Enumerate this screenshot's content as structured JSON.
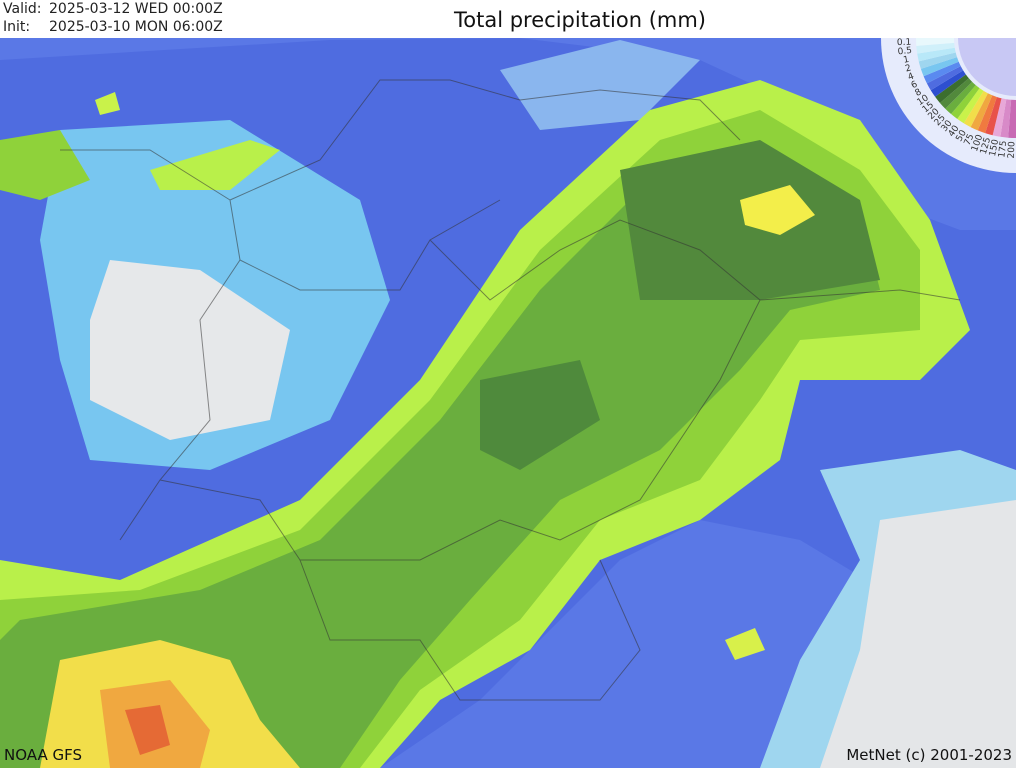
{
  "header": {
    "valid_label": "Valid:",
    "valid_time": "2025-03-12 WED 00:00Z",
    "init_label": "Init:",
    "init_time": "2025-03-10 MON 06:00Z",
    "title": "Total precipitation (mm)"
  },
  "legend": {
    "labels": [
      "200",
      "175",
      "150",
      "125",
      "100",
      "75",
      "50",
      "40",
      "30",
      "25",
      "20",
      "15",
      "10",
      "8",
      "6",
      "4",
      "2",
      "1",
      "0.5",
      "0.1"
    ]
  },
  "footer": {
    "source": "NOAA GFS",
    "copyright": "MetNet (c) 2001-2023"
  }
}
